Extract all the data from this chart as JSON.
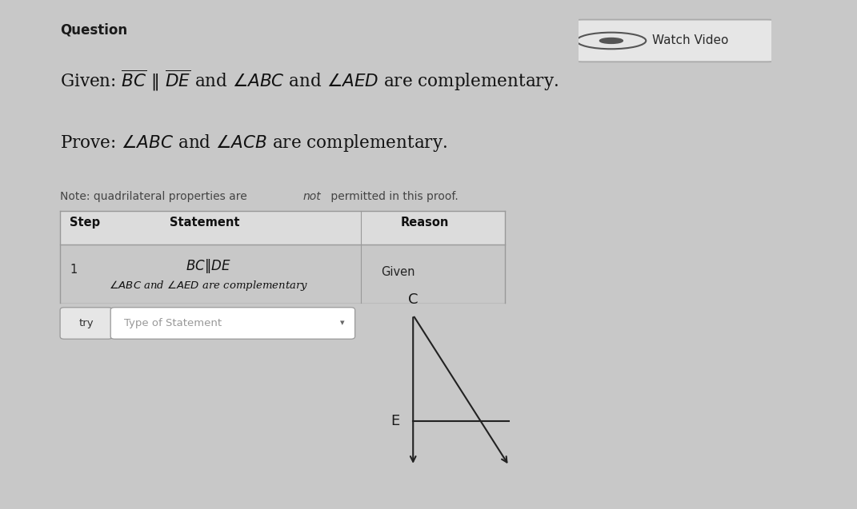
{
  "bg_color": "#c8c8c8",
  "panel_color": "#e6e6e6",
  "title": "Question",
  "watch_video_text": "Watch Video",
  "given_line_normal": "Given: ",
  "given_line_math1": "$\\overline{BC}$",
  "given_line_sep": " ∥ ",
  "given_line_math2": "$\\overline{DE}$",
  "given_line_end": " and $\\angle ABC$ and $\\angle AED$ are complementary.",
  "prove_line": "Prove: $\\angle ABC$ and $\\angle ACB$ are complementary.",
  "note_part1": "Note: quadrilateral properties are ",
  "note_italic": "not",
  "note_part2": " permitted in this proof.",
  "header_step": "Step",
  "header_stmt": "Statement",
  "header_reason": "Reason",
  "step_num": "1",
  "stmt_top": "$BC \\| DE$",
  "stmt_bot": "$\\angle ABC$ and $\\angle AED$ are complementary",
  "reason_text": "Given",
  "try_btn_label": "try",
  "dropdown_placeholder": "Type of Statement",
  "geo_C": "C",
  "geo_E": "E"
}
